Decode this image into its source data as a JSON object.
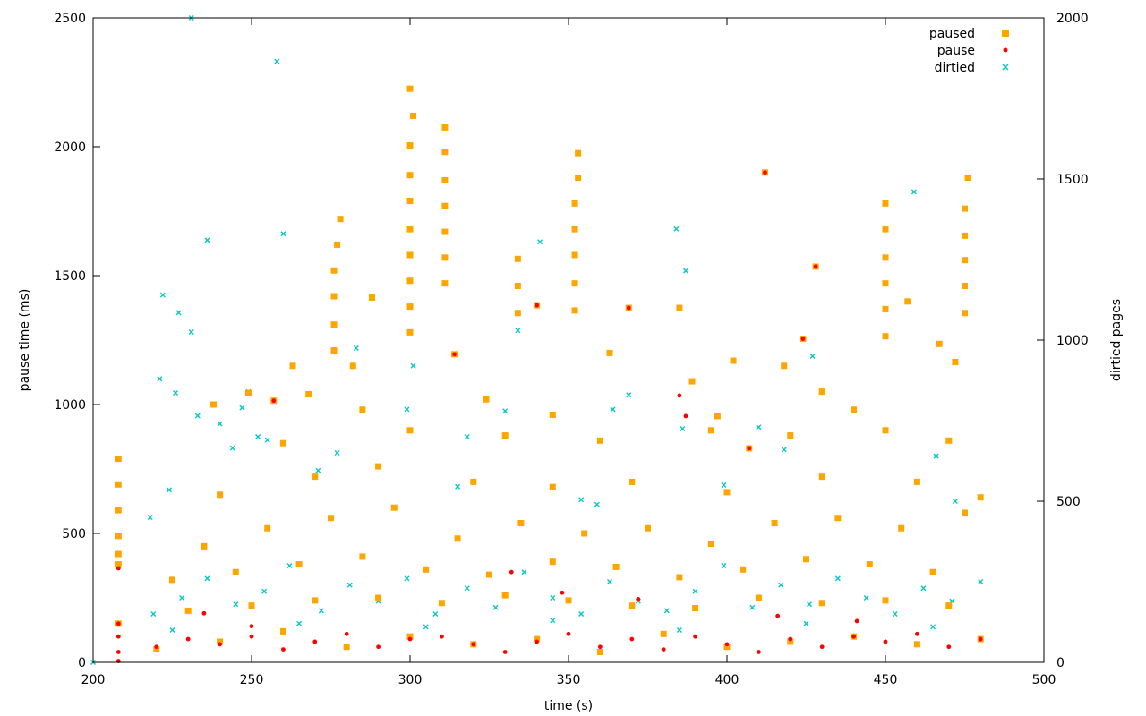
{
  "chart_data": {
    "type": "scatter",
    "title": "",
    "xlabel": "time (s)",
    "ylabel": "pause time (ms)",
    "y2label": "dirtied pages",
    "xlim": [
      200,
      500
    ],
    "ylim": [
      0,
      2500
    ],
    "y2lim": [
      0,
      2000
    ],
    "x_ticks": [
      "200",
      "250",
      "300",
      "350",
      "400",
      "450",
      "500"
    ],
    "y_ticks": [
      "0",
      "500",
      "1000",
      "1500",
      "2000",
      "2500"
    ],
    "y2_ticks": [
      "0",
      "500",
      "1000",
      "1500",
      "2000"
    ],
    "grid": false,
    "legend_position": "top-right",
    "colors": {
      "paused": "#ffa500",
      "pause": "#ff0000",
      "dirtied": "#00c8c8"
    },
    "series": [
      {
        "name": "paused",
        "axis": "left",
        "marker": "square",
        "points": [
          [
            208,
            150
          ],
          [
            208,
            790
          ],
          [
            208,
            690
          ],
          [
            208,
            590
          ],
          [
            208,
            490
          ],
          [
            208,
            420
          ],
          [
            208,
            380
          ],
          [
            257,
            1015
          ],
          [
            300,
            2225
          ],
          [
            301,
            2120
          ],
          [
            300,
            2005
          ],
          [
            300,
            1890
          ],
          [
            300,
            1790
          ],
          [
            300,
            1680
          ],
          [
            300,
            1580
          ],
          [
            300,
            1480
          ],
          [
            300,
            1380
          ],
          [
            300,
            1280
          ],
          [
            311,
            2075
          ],
          [
            311,
            1980
          ],
          [
            311,
            1870
          ],
          [
            311,
            1770
          ],
          [
            311,
            1670
          ],
          [
            311,
            1570
          ],
          [
            311,
            1470
          ],
          [
            314,
            1195
          ],
          [
            278,
            1720
          ],
          [
            277,
            1620
          ],
          [
            276,
            1520
          ],
          [
            276,
            1420
          ],
          [
            276,
            1310
          ],
          [
            276,
            1210
          ],
          [
            353,
            1975
          ],
          [
            353,
            1880
          ],
          [
            352,
            1780
          ],
          [
            352,
            1680
          ],
          [
            352,
            1580
          ],
          [
            352,
            1470
          ],
          [
            352,
            1365
          ],
          [
            340,
            1385
          ],
          [
            369,
            1375
          ],
          [
            385,
            1375
          ],
          [
            412,
            1900
          ],
          [
            428,
            1535
          ],
          [
            424,
            1255
          ],
          [
            450,
            1780
          ],
          [
            450,
            1680
          ],
          [
            450,
            1570
          ],
          [
            450,
            1470
          ],
          [
            450,
            1370
          ],
          [
            450,
            1265
          ],
          [
            476,
            1880
          ],
          [
            475,
            1760
          ],
          [
            475,
            1655
          ],
          [
            475,
            1560
          ],
          [
            475,
            1460
          ],
          [
            475,
            1355
          ],
          [
            263,
            1150
          ],
          [
            288,
            1415
          ],
          [
            334,
            1565
          ],
          [
            334,
            1460
          ],
          [
            334,
            1355
          ],
          [
            268,
            1040
          ],
          [
            238,
            1000
          ],
          [
            249,
            1045
          ],
          [
            282,
            1150
          ],
          [
            324,
            1020
          ],
          [
            363,
            1200
          ],
          [
            389,
            1090
          ],
          [
            397,
            955
          ],
          [
            402,
            1170
          ],
          [
            407,
            830
          ],
          [
            430,
            1050
          ],
          [
            457,
            1400
          ],
          [
            467,
            1235
          ],
          [
            472,
            1165
          ],
          [
            418,
            1150
          ]
        ],
        "band_points": [
          [
            220,
            50
          ],
          [
            240,
            80
          ],
          [
            260,
            120
          ],
          [
            280,
            60
          ],
          [
            300,
            100
          ],
          [
            320,
            70
          ],
          [
            340,
            90
          ],
          [
            360,
            40
          ],
          [
            380,
            110
          ],
          [
            400,
            60
          ],
          [
            420,
            80
          ],
          [
            440,
            100
          ],
          [
            460,
            70
          ],
          [
            480,
            90
          ],
          [
            230,
            200
          ],
          [
            250,
            220
          ],
          [
            270,
            240
          ],
          [
            290,
            250
          ],
          [
            310,
            230
          ],
          [
            330,
            260
          ],
          [
            350,
            240
          ],
          [
            370,
            220
          ],
          [
            390,
            210
          ],
          [
            410,
            250
          ],
          [
            430,
            230
          ],
          [
            450,
            240
          ],
          [
            470,
            220
          ],
          [
            225,
            320
          ],
          [
            245,
            350
          ],
          [
            265,
            380
          ],
          [
            285,
            410
          ],
          [
            305,
            360
          ],
          [
            325,
            340
          ],
          [
            345,
            390
          ],
          [
            365,
            370
          ],
          [
            385,
            330
          ],
          [
            405,
            360
          ],
          [
            425,
            400
          ],
          [
            445,
            380
          ],
          [
            465,
            350
          ],
          [
            235,
            450
          ],
          [
            255,
            520
          ],
          [
            275,
            560
          ],
          [
            295,
            600
          ],
          [
            315,
            480
          ],
          [
            335,
            540
          ],
          [
            355,
            500
          ],
          [
            375,
            520
          ],
          [
            395,
            460
          ],
          [
            415,
            540
          ],
          [
            435,
            560
          ],
          [
            455,
            520
          ],
          [
            475,
            580
          ],
          [
            240,
            650
          ],
          [
            270,
            720
          ],
          [
            290,
            760
          ],
          [
            320,
            700
          ],
          [
            345,
            680
          ],
          [
            370,
            700
          ],
          [
            400,
            660
          ],
          [
            430,
            720
          ],
          [
            460,
            700
          ],
          [
            480,
            640
          ],
          [
            260,
            850
          ],
          [
            300,
            900
          ],
          [
            330,
            880
          ],
          [
            360,
            860
          ],
          [
            420,
            880
          ],
          [
            450,
            900
          ],
          [
            470,
            860
          ],
          [
            285,
            980
          ],
          [
            345,
            960
          ],
          [
            395,
            900
          ],
          [
            440,
            980
          ]
        ]
      },
      {
        "name": "pause",
        "axis": "left",
        "marker": "dot",
        "points": [
          [
            208,
            150
          ],
          [
            208,
            365
          ],
          [
            208,
            100
          ],
          [
            208,
            40
          ],
          [
            208,
            5
          ],
          [
            257,
            1015
          ],
          [
            314,
            1195
          ],
          [
            340,
            1385
          ],
          [
            369,
            1375
          ],
          [
            385,
            1035
          ],
          [
            387,
            955
          ],
          [
            407,
            830
          ],
          [
            412,
            1900
          ],
          [
            424,
            1255
          ],
          [
            428,
            1535
          ],
          [
            235,
            190
          ],
          [
            250,
            140
          ],
          [
            332,
            350
          ],
          [
            348,
            270
          ],
          [
            372,
            245
          ],
          [
            416,
            180
          ],
          [
            441,
            160
          ]
        ],
        "band_points": [
          [
            220,
            60
          ],
          [
            230,
            90
          ],
          [
            240,
            70
          ],
          [
            250,
            100
          ],
          [
            260,
            50
          ],
          [
            270,
            80
          ],
          [
            280,
            110
          ],
          [
            290,
            60
          ],
          [
            300,
            90
          ],
          [
            310,
            100
          ],
          [
            320,
            70
          ],
          [
            330,
            40
          ],
          [
            340,
            80
          ],
          [
            350,
            110
          ],
          [
            360,
            60
          ],
          [
            370,
            90
          ],
          [
            380,
            50
          ],
          [
            390,
            100
          ],
          [
            400,
            70
          ],
          [
            410,
            40
          ],
          [
            420,
            90
          ],
          [
            430,
            60
          ],
          [
            440,
            100
          ],
          [
            450,
            80
          ],
          [
            460,
            110
          ],
          [
            470,
            60
          ],
          [
            480,
            90
          ]
        ]
      },
      {
        "name": "dirtied",
        "axis": "right",
        "marker": "cross",
        "points": [
          [
            231,
            2000
          ],
          [
            258,
            1865
          ],
          [
            260,
            1330
          ],
          [
            236,
            1310
          ],
          [
            222,
            1140
          ],
          [
            227,
            1085
          ],
          [
            231,
            1025
          ],
          [
            221,
            880
          ],
          [
            226,
            836
          ],
          [
            224,
            535
          ],
          [
            218,
            450
          ],
          [
            233,
            765
          ],
          [
            240,
            740
          ],
          [
            244,
            665
          ],
          [
            247,
            790
          ],
          [
            249,
            840
          ],
          [
            252,
            700
          ],
          [
            255,
            690
          ],
          [
            271,
            595
          ],
          [
            277,
            650
          ],
          [
            283,
            975
          ],
          [
            299,
            785
          ],
          [
            301,
            920
          ],
          [
            315,
            545
          ],
          [
            318,
            700
          ],
          [
            330,
            780
          ],
          [
            334,
            1030
          ],
          [
            341,
            1305
          ],
          [
            354,
            505
          ],
          [
            359,
            490
          ],
          [
            364,
            785
          ],
          [
            369,
            830
          ],
          [
            384,
            1345
          ],
          [
            387,
            1215
          ],
          [
            386,
            725
          ],
          [
            399,
            550
          ],
          [
            410,
            730
          ],
          [
            418,
            660
          ],
          [
            427,
            950
          ],
          [
            459,
            1460
          ],
          [
            466,
            640
          ],
          [
            472,
            500
          ],
          [
            200,
            0
          ]
        ],
        "band_points": [
          [
            219,
            150
          ],
          [
            228,
            200
          ],
          [
            236,
            260
          ],
          [
            245,
            180
          ],
          [
            254,
            220
          ],
          [
            262,
            300
          ],
          [
            272,
            160
          ],
          [
            281,
            240
          ],
          [
            290,
            190
          ],
          [
            299,
            260
          ],
          [
            308,
            150
          ],
          [
            318,
            230
          ],
          [
            327,
            170
          ],
          [
            336,
            280
          ],
          [
            345,
            200
          ],
          [
            354,
            150
          ],
          [
            363,
            250
          ],
          [
            372,
            190
          ],
          [
            381,
            160
          ],
          [
            390,
            220
          ],
          [
            399,
            300
          ],
          [
            408,
            170
          ],
          [
            417,
            240
          ],
          [
            426,
            180
          ],
          [
            435,
            260
          ],
          [
            444,
            200
          ],
          [
            453,
            150
          ],
          [
            462,
            230
          ],
          [
            471,
            190
          ],
          [
            480,
            250
          ],
          [
            225,
            100
          ],
          [
            265,
            120
          ],
          [
            305,
            110
          ],
          [
            345,
            130
          ],
          [
            385,
            100
          ],
          [
            425,
            120
          ],
          [
            465,
            110
          ]
        ]
      }
    ]
  }
}
